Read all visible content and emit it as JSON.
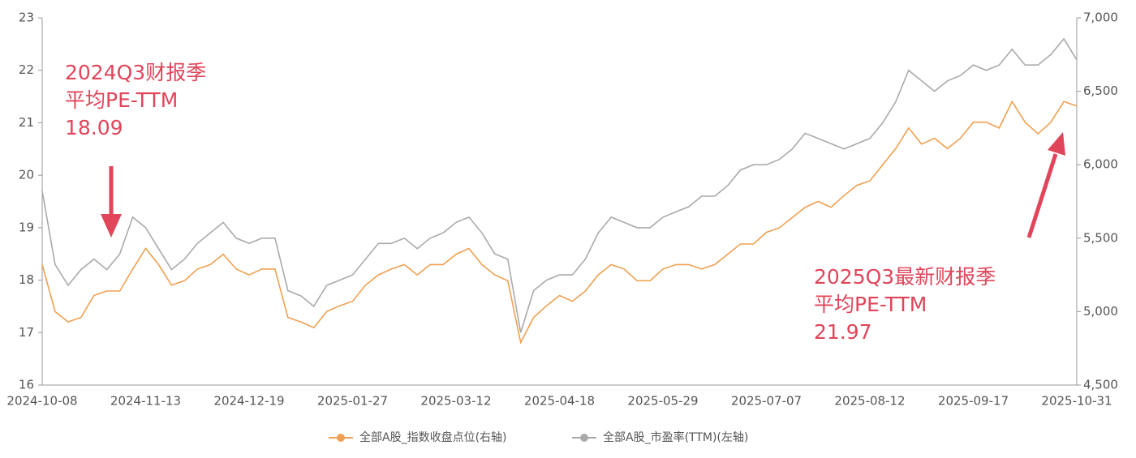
{
  "chart_data": {
    "type": "line",
    "categories": [
      "2024-10-08",
      null,
      null,
      null,
      null,
      null,
      null,
      null,
      "2024-11-13",
      null,
      null,
      null,
      null,
      null,
      null,
      null,
      "2024-12-19",
      null,
      null,
      null,
      null,
      null,
      null,
      null,
      "2025-01-27",
      null,
      null,
      null,
      null,
      null,
      null,
      null,
      "2025-03-12",
      null,
      null,
      null,
      null,
      null,
      null,
      null,
      "2025-04-18",
      null,
      null,
      null,
      null,
      null,
      null,
      null,
      "2025-05-29",
      null,
      null,
      null,
      null,
      null,
      null,
      null,
      "2025-07-07",
      null,
      null,
      null,
      null,
      null,
      null,
      null,
      "2025-08-12",
      null,
      null,
      null,
      null,
      null,
      null,
      null,
      "2025-09-17",
      null,
      null,
      null,
      null,
      null,
      null,
      null,
      "2025-10-31"
    ],
    "series": [
      {
        "name": "全部A股_指数收盘点位(右轴)",
        "color": "#f0a050",
        "axis": "y2",
        "values": [
          5320,
          5000,
          4930,
          4960,
          5110,
          5140,
          5140,
          5290,
          5430,
          5320,
          5180,
          5210,
          5290,
          5320,
          5390,
          5290,
          5250,
          5290,
          5290,
          4960,
          4930,
          4890,
          5000,
          5040,
          5070,
          5180,
          5250,
          5290,
          5320,
          5250,
          5320,
          5320,
          5390,
          5430,
          5320,
          5250,
          5210,
          4790,
          4960,
          5040,
          5110,
          5070,
          5140,
          5250,
          5320,
          5290,
          5210,
          5210,
          5290,
          5320,
          5320,
          5290,
          5320,
          5390,
          5460,
          5460,
          5540,
          5570,
          5640,
          5710,
          5750,
          5710,
          5790,
          5860,
          5890,
          6000,
          6110,
          6250,
          6140,
          6180,
          6110,
          6180,
          6290,
          6290,
          6250,
          6430,
          6290,
          6210,
          6290,
          6430,
          6400
        ]
      },
      {
        "name": "全部A股_市盈率(TTM)(左轴)",
        "color": "#aaaaaa",
        "values": [
          19.7,
          18.3,
          17.9,
          18.2,
          18.4,
          18.2,
          18.5,
          19.2,
          19.0,
          18.6,
          18.2,
          18.4,
          18.7,
          18.9,
          19.1,
          18.8,
          18.7,
          18.8,
          18.8,
          17.8,
          17.7,
          17.5,
          17.9,
          18.0,
          18.1,
          18.4,
          18.7,
          18.7,
          18.8,
          18.6,
          18.8,
          18.9,
          19.1,
          19.2,
          18.9,
          18.5,
          18.4,
          17.0,
          17.8,
          18.0,
          18.1,
          18.1,
          18.4,
          18.9,
          19.2,
          19.1,
          19.0,
          19.0,
          19.2,
          19.3,
          19.4,
          19.6,
          19.6,
          19.8,
          20.1,
          20.2,
          20.2,
          20.3,
          20.5,
          20.8,
          20.7,
          20.6,
          20.5,
          20.6,
          20.7,
          21.0,
          21.4,
          22.0,
          21.8,
          21.6,
          21.8,
          21.9,
          22.1,
          22.0,
          22.1,
          22.4,
          22.1,
          22.1,
          22.3,
          22.6,
          22.2
        ]
      }
    ],
    "ylim": [
      16,
      23
    ],
    "yticks": [
      16,
      17,
      18,
      19,
      20,
      21,
      22,
      23
    ],
    "y2lim": [
      4500,
      7000
    ],
    "y2ticks": [
      {
        "value": 4500,
        "label": "4,500"
      },
      {
        "value": 5000,
        "label": "5,000"
      },
      {
        "value": 5500,
        "label": "5,500"
      },
      {
        "value": 6000,
        "label": "6,000"
      },
      {
        "value": 6500,
        "label": "6,500"
      },
      {
        "value": 7000,
        "label": "7,000"
      }
    ],
    "grid": false,
    "legend": "bottom",
    "annotations": [
      [
        "2024Q3财报季",
        "平均PE-TTM",
        "18.09"
      ],
      [
        "2025Q3最新财报季",
        "平均PE-TTM",
        "21.97"
      ]
    ],
    "annotation_color": "#e0455a"
  }
}
